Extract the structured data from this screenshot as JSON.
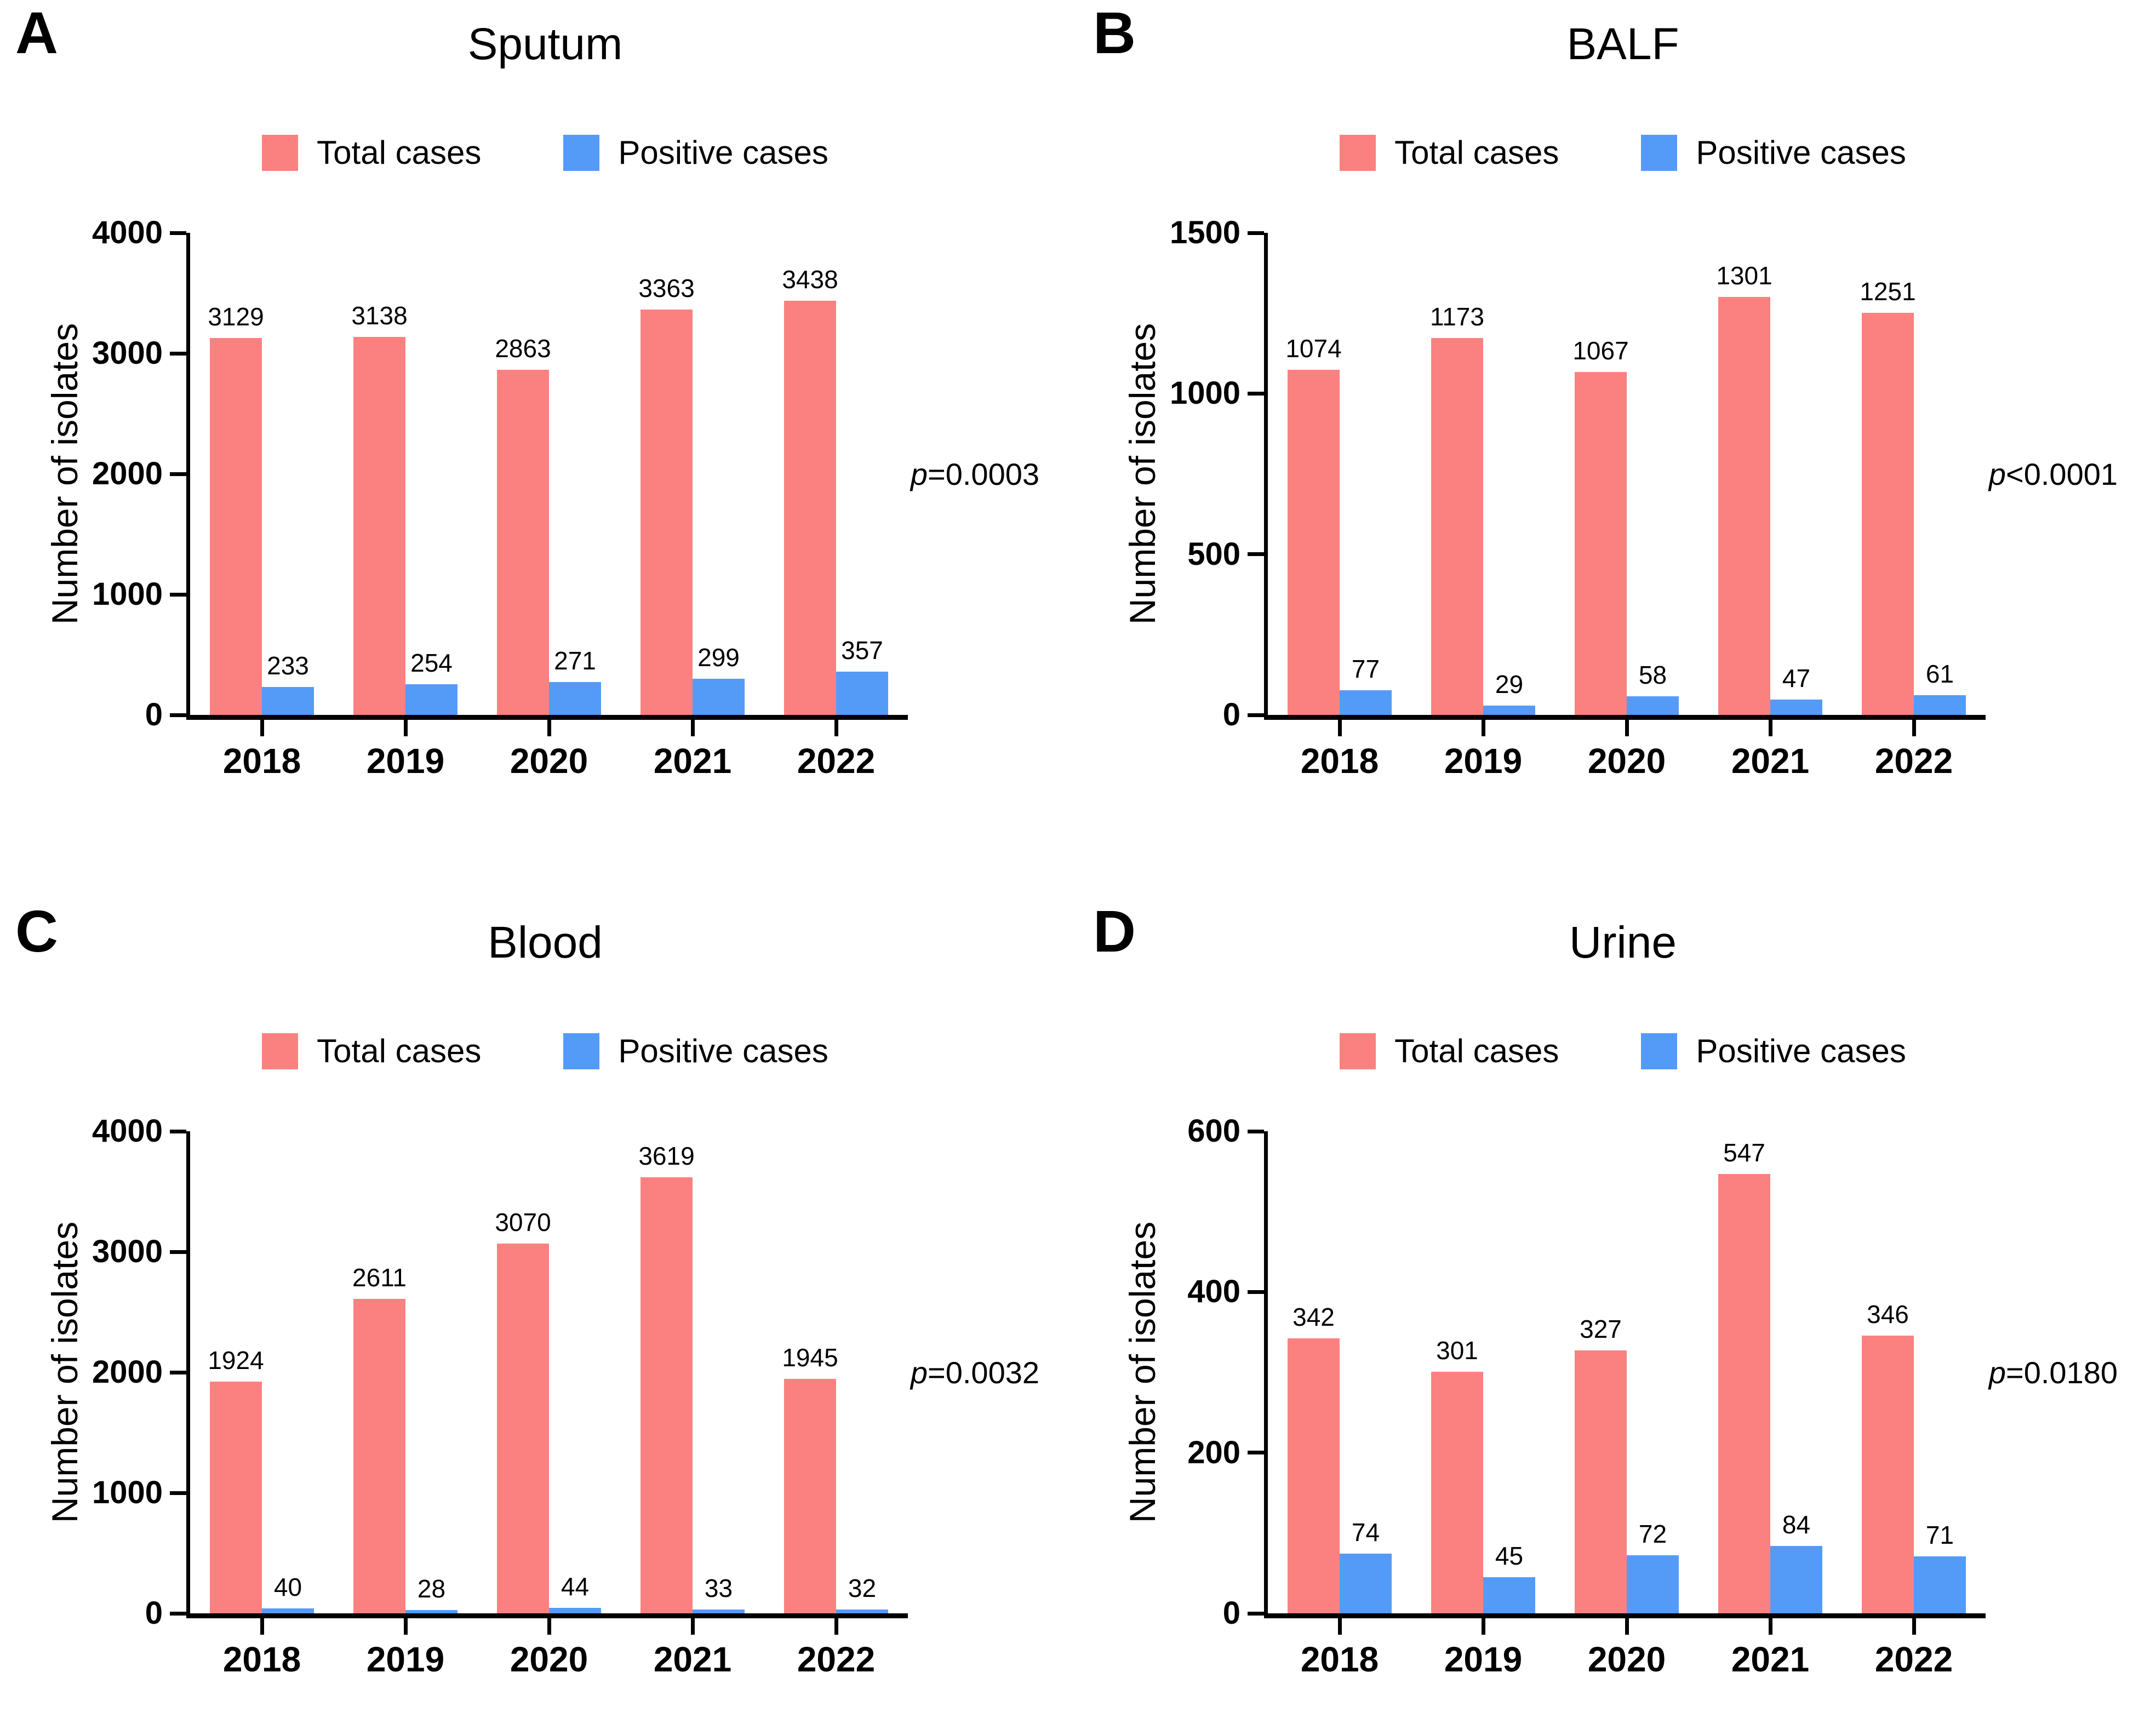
{
  "legend": {
    "total_label": "Total cases",
    "positive_label": "Positive cases"
  },
  "colors": {
    "total_bar": "#FB8181",
    "positive_bar": "#549BF7",
    "axis": "#000000",
    "text": "#000000"
  },
  "y_axis_label": "Number of isolates",
  "years": [
    "2018",
    "2019",
    "2020",
    "2021",
    "2022"
  ],
  "chart_data": [
    {
      "type": "bar",
      "panel_letter": "A",
      "title": "Sputum",
      "categories": [
        "2018",
        "2019",
        "2020",
        "2021",
        "2022"
      ],
      "series": [
        {
          "name": "Total cases",
          "values": [
            3129,
            3138,
            2863,
            3363,
            3438
          ]
        },
        {
          "name": "Positive cases",
          "values": [
            233,
            254,
            271,
            299,
            357
          ]
        }
      ],
      "xlabel": "",
      "ylabel": "Number of isolates",
      "ylim": [
        0,
        4000
      ],
      "yticks": [
        0,
        1000,
        2000,
        3000,
        4000
      ],
      "grid": false,
      "legend_position": "top",
      "annotation": {
        "p_italic": "p",
        "p_rest": "=0.0003",
        "p_full": "p=0.0003"
      }
    },
    {
      "type": "bar",
      "panel_letter": "B",
      "title": "BALF",
      "categories": [
        "2018",
        "2019",
        "2020",
        "2021",
        "2022"
      ],
      "series": [
        {
          "name": "Total cases",
          "values": [
            1074,
            1173,
            1067,
            1301,
            1251
          ]
        },
        {
          "name": "Positive cases",
          "values": [
            77,
            29,
            58,
            47,
            61
          ]
        }
      ],
      "xlabel": "",
      "ylabel": "Number of isolates",
      "ylim": [
        0,
        1500
      ],
      "yticks": [
        0,
        500,
        1000,
        1500
      ],
      "grid": false,
      "legend_position": "top",
      "annotation": {
        "p_italic": "p",
        "p_rest": "<0.0001",
        "p_full": "p<0.0001"
      }
    },
    {
      "type": "bar",
      "panel_letter": "C",
      "title": "Blood",
      "categories": [
        "2018",
        "2019",
        "2020",
        "2021",
        "2022"
      ],
      "series": [
        {
          "name": "Total cases",
          "values": [
            1924,
            2611,
            3070,
            3619,
            1945
          ]
        },
        {
          "name": "Positive cases",
          "values": [
            40,
            28,
            44,
            33,
            32
          ]
        }
      ],
      "xlabel": "",
      "ylabel": "Number of isolates",
      "ylim": [
        0,
        4000
      ],
      "yticks": [
        0,
        1000,
        2000,
        3000,
        4000
      ],
      "grid": false,
      "legend_position": "top",
      "annotation": {
        "p_italic": "p",
        "p_rest": "=0.0032",
        "p_full": "p=0.0032"
      }
    },
    {
      "type": "bar",
      "panel_letter": "D",
      "title": "Urine",
      "categories": [
        "2018",
        "2019",
        "2020",
        "2021",
        "2022"
      ],
      "series": [
        {
          "name": "Total cases",
          "values": [
            342,
            301,
            327,
            547,
            346
          ]
        },
        {
          "name": "Positive cases",
          "values": [
            74,
            45,
            72,
            84,
            71
          ]
        }
      ],
      "xlabel": "",
      "ylabel": "Number of isolates",
      "ylim": [
        0,
        600
      ],
      "yticks": [
        0,
        200,
        400,
        600
      ],
      "grid": false,
      "legend_position": "top",
      "annotation": {
        "p_italic": "p",
        "p_rest": "=0.0180",
        "p_full": "p=0.0180"
      }
    }
  ]
}
